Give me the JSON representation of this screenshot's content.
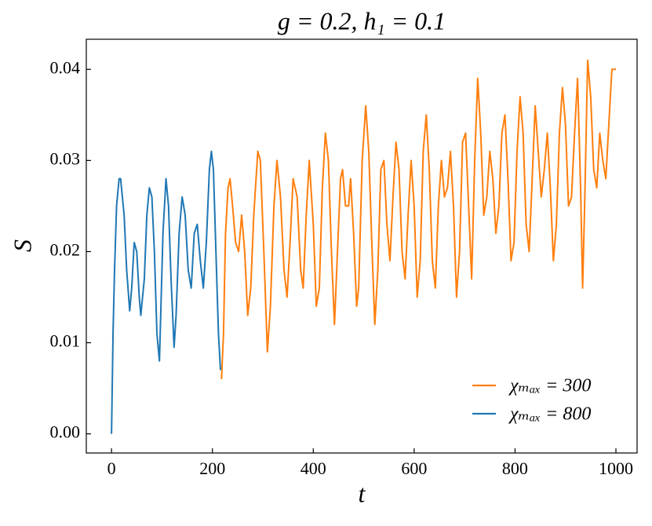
{
  "chart_data": {
    "type": "line",
    "title": "g = 0.2, h₁ = 0.1",
    "x_label": "t",
    "y_label": "S",
    "xlim": [
      -50,
      1042
    ],
    "ylim": [
      -0.0021,
      0.0433
    ],
    "xticks": [
      0,
      200,
      400,
      600,
      800,
      1000
    ],
    "yticks": [
      {
        "value": 0,
        "label": "0.00"
      },
      0.01,
      0.02,
      0.03,
      0.04
    ],
    "legend": "lower right",
    "series": [
      {
        "name": "χₘₐₓ = 300",
        "color": "#ff7f0e",
        "x": [
          218,
          222,
          226,
          231,
          235,
          240,
          246,
          252,
          258,
          264,
          270,
          276,
          282,
          290,
          295,
          302,
          309,
          315,
          322,
          328,
          335,
          342,
          348,
          354,
          360,
          368,
          375,
          380,
          386,
          392,
          400,
          406,
          412,
          418,
          424,
          430,
          436,
          442,
          448,
          454,
          458,
          464,
          470,
          474,
          480,
          486,
          490,
          497,
          504,
          510,
          516,
          522,
          528,
          534,
          540,
          546,
          552,
          558,
          564,
          570,
          576,
          582,
          588,
          594,
          600,
          606,
          612,
          618,
          624,
          630,
          636,
          642,
          648,
          654,
          660,
          666,
          672,
          678,
          684,
          690,
          696,
          702,
          708,
          714,
          720,
          726,
          732,
          738,
          744,
          750,
          756,
          762,
          768,
          774,
          780,
          786,
          792,
          798,
          804,
          810,
          816,
          822,
          828,
          834,
          840,
          846,
          852,
          858,
          864,
          870,
          876,
          882,
          888,
          894,
          900,
          906,
          912,
          918,
          924,
          930,
          934,
          938,
          944,
          950,
          956,
          962,
          968,
          974,
          980,
          986,
          992,
          1000
        ],
        "values": [
          0.006,
          0.011,
          0.022,
          0.027,
          0.028,
          0.025,
          0.021,
          0.02,
          0.024,
          0.02,
          0.013,
          0.016,
          0.024,
          0.031,
          0.03,
          0.02,
          0.009,
          0.014,
          0.025,
          0.03,
          0.026,
          0.018,
          0.015,
          0.021,
          0.028,
          0.026,
          0.018,
          0.016,
          0.024,
          0.03,
          0.023,
          0.014,
          0.016,
          0.027,
          0.033,
          0.03,
          0.02,
          0.012,
          0.02,
          0.028,
          0.029,
          0.025,
          0.025,
          0.028,
          0.022,
          0.014,
          0.016,
          0.03,
          0.036,
          0.031,
          0.021,
          0.012,
          0.018,
          0.029,
          0.03,
          0.023,
          0.019,
          0.026,
          0.032,
          0.029,
          0.02,
          0.017,
          0.024,
          0.03,
          0.025,
          0.015,
          0.019,
          0.031,
          0.035,
          0.029,
          0.019,
          0.016,
          0.025,
          0.03,
          0.026,
          0.027,
          0.031,
          0.025,
          0.015,
          0.02,
          0.032,
          0.033,
          0.025,
          0.017,
          0.03,
          0.039,
          0.033,
          0.024,
          0.026,
          0.031,
          0.028,
          0.022,
          0.025,
          0.033,
          0.035,
          0.028,
          0.019,
          0.021,
          0.031,
          0.037,
          0.033,
          0.023,
          0.02,
          0.028,
          0.036,
          0.031,
          0.026,
          0.029,
          0.033,
          0.027,
          0.019,
          0.023,
          0.033,
          0.038,
          0.034,
          0.025,
          0.026,
          0.033,
          0.039,
          0.027,
          0.016,
          0.025,
          0.041,
          0.037,
          0.029,
          0.027,
          0.033,
          0.03,
          0.028,
          0.034,
          0.04,
          0.04
        ]
      },
      {
        "name": "χₘₐₓ = 800",
        "color": "#1f77b4",
        "x": [
          0,
          3,
          6,
          10,
          15,
          18,
          25,
          30,
          36,
          40,
          45,
          50,
          55,
          58,
          65,
          70,
          75,
          80,
          85,
          90,
          95,
          98,
          102,
          108,
          113,
          118,
          124,
          128,
          134,
          140,
          146,
          152,
          158,
          164,
          170,
          176,
          182,
          188,
          194,
          198,
          202,
          207,
          212,
          216
        ],
        "values": [
          0,
          0.011,
          0.018,
          0.025,
          0.028,
          0.028,
          0.024,
          0.018,
          0.0135,
          0.016,
          0.021,
          0.02,
          0.015,
          0.013,
          0.017,
          0.024,
          0.027,
          0.026,
          0.02,
          0.011,
          0.008,
          0.014,
          0.022,
          0.028,
          0.025,
          0.017,
          0.0095,
          0.013,
          0.022,
          0.026,
          0.024,
          0.018,
          0.016,
          0.022,
          0.023,
          0.019,
          0.016,
          0.021,
          0.029,
          0.031,
          0.029,
          0.02,
          0.011,
          0.007
        ]
      }
    ]
  }
}
